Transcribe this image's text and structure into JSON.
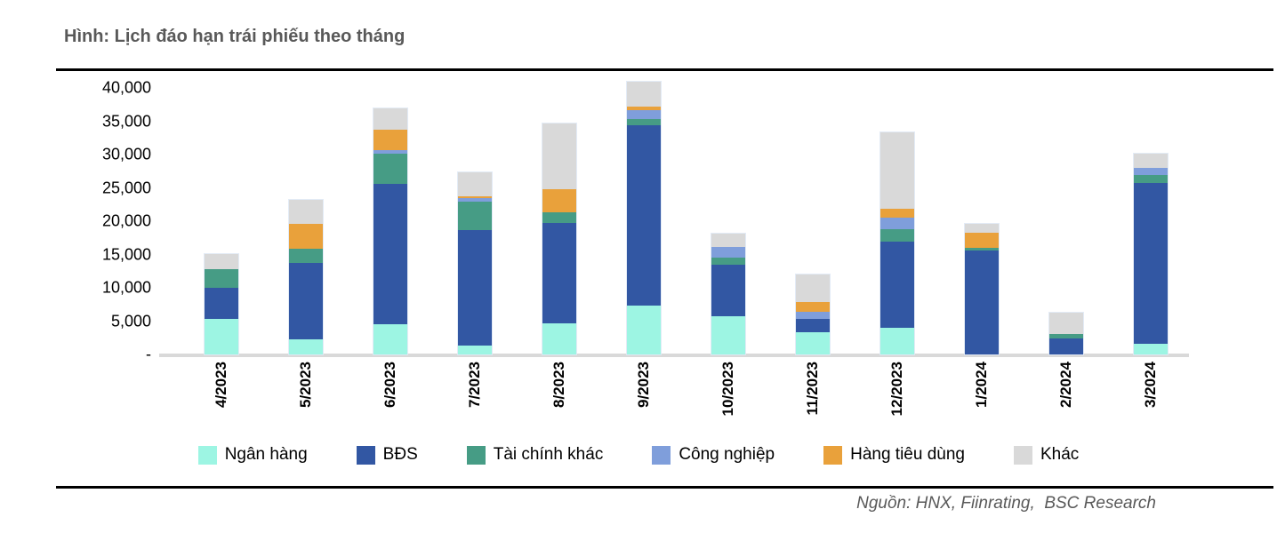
{
  "title": "Hình: Lịch đáo hạn trái phiếu theo tháng",
  "source": "Nguồn: HNX, Fiinrating,  BSC Research",
  "chart_data": {
    "type": "bar",
    "stacked": true,
    "grid": false,
    "legend_position": "bottom",
    "ylim": [
      0,
      40000
    ],
    "xlabel": "",
    "ylabel": "",
    "categories": [
      "4/2023",
      "5/2023",
      "6/2023",
      "7/2023",
      "8/2023",
      "9/2023",
      "10/2023",
      "11/2023",
      "12/2023",
      "1/2024",
      "2/2024",
      "3/2024"
    ],
    "y_ticks": [
      {
        "label": "40,000",
        "value": 40000
      },
      {
        "label": "35,000",
        "value": 35000
      },
      {
        "label": "30,000",
        "value": 30000
      },
      {
        "label": "25,000",
        "value": 25000
      },
      {
        "label": "20,000",
        "value": 20000
      },
      {
        "label": "15,000",
        "value": 15000
      },
      {
        "label": "10,000",
        "value": 10000
      },
      {
        "label": "5,000",
        "value": 5000
      },
      {
        "label": "-",
        "value": 0
      }
    ],
    "series": [
      {
        "name": "Ngân hàng",
        "color": "#9DF5E3",
        "values": [
          5300,
          2300,
          4500,
          1400,
          4700,
          7400,
          5800,
          3400,
          4000,
          0,
          0,
          1600
        ]
      },
      {
        "name": "BĐS",
        "color": "#3257A3",
        "values": [
          4700,
          11400,
          21100,
          17300,
          15000,
          27000,
          7700,
          1900,
          12900,
          15600,
          2400,
          24200
        ]
      },
      {
        "name": "Tài chính khác",
        "color": "#469C85",
        "values": [
          2800,
          2200,
          4500,
          4300,
          1600,
          1000,
          1000,
          0,
          1900,
          350,
          650,
          1150
        ]
      },
      {
        "name": "Công nghiệp",
        "color": "#7F9EDB",
        "values": [
          0,
          0,
          600,
          450,
          0,
          1300,
          1700,
          1100,
          1700,
          0,
          0,
          1100
        ]
      },
      {
        "name": "Hàng tiêu dùng",
        "color": "#E9A13B",
        "values": [
          0,
          3700,
          3000,
          300,
          3500,
          450,
          0,
          1500,
          1400,
          2350,
          0,
          0
        ]
      },
      {
        "name": "Khác",
        "color": "#D9D9D9",
        "values": [
          2300,
          3600,
          3200,
          3600,
          9900,
          3800,
          1950,
          4100,
          11500,
          1350,
          3250,
          2150
        ]
      }
    ],
    "axis_line_color": "#D9D9D9",
    "title_color": "#595959"
  }
}
